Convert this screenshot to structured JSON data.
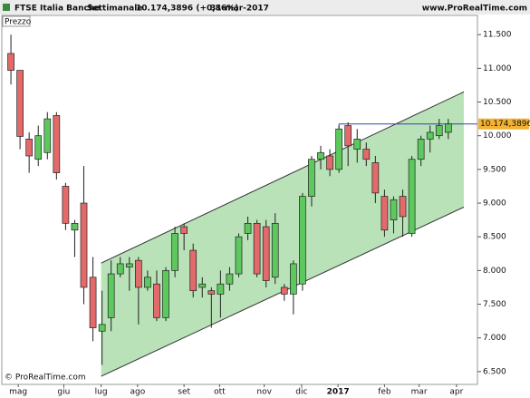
{
  "header": {
    "title": "FTSE Italia Banche",
    "period": "Settimanale",
    "quote": "10.174,3896 (+0,86%)",
    "date": "31-mar-2017",
    "site": "www.ProRealTime.com"
  },
  "footer": "© ProRealTime.com",
  "chart_data": {
    "type": "candlestick",
    "panel_label": "Prezzo",
    "up_color": "#5dc85d",
    "down_color": "#e26a6a",
    "open": [
      11220,
      10970,
      9950,
      9650,
      9750,
      10300,
      9250,
      8600,
      9000,
      7900,
      7100,
      7300,
      7950,
      8050,
      8150,
      7750,
      7800,
      7300,
      8000,
      8650,
      8300,
      7750,
      7700,
      7650,
      7800,
      7950,
      8550,
      8700,
      8650,
      7900,
      7750,
      7650,
      7800,
      9100,
      9650,
      9700,
      9500,
      10150,
      9800,
      9800,
      9600,
      9100,
      8750,
      9100,
      8550,
      9650,
      9950,
      10000,
      10050
    ],
    "high": [
      11500,
      10970,
      10050,
      10150,
      10350,
      10350,
      9300,
      8750,
      9550,
      8200,
      7700,
      8150,
      8200,
      8200,
      8200,
      8000,
      8000,
      8050,
      8650,
      8700,
      8400,
      7900,
      7750,
      8000,
      8050,
      8550,
      8800,
      8750,
      8750,
      8850,
      7800,
      8150,
      9150,
      9700,
      9850,
      9800,
      10150,
      10200,
      10100,
      9900,
      9700,
      9200,
      9100,
      9200,
      9700,
      10000,
      10150,
      10250,
      10250
    ],
    "low": [
      10760,
      9800,
      9450,
      9550,
      9650,
      9350,
      8600,
      8200,
      7500,
      6950,
      6600,
      7100,
      7900,
      7700,
      7200,
      7700,
      7250,
      7250,
      7900,
      8300,
      7600,
      7600,
      7150,
      7300,
      7700,
      7900,
      8450,
      7900,
      7750,
      7800,
      7550,
      7350,
      7700,
      8950,
      9500,
      9400,
      9450,
      9550,
      9600,
      9550,
      9000,
      8500,
      8550,
      8500,
      8500,
      9550,
      9750,
      9950,
      9950
    ],
    "close": [
      10970,
      9990,
      9700,
      10000,
      10250,
      9450,
      8700,
      8700,
      7750,
      7150,
      7200,
      7950,
      8100,
      8100,
      7750,
      7900,
      7300,
      8000,
      8550,
      8550,
      7700,
      7800,
      7650,
      7800,
      7950,
      8500,
      8700,
      7950,
      7850,
      8700,
      7650,
      8100,
      9100,
      9650,
      9750,
      9500,
      10100,
      9850,
      9950,
      9650,
      9150,
      8600,
      9050,
      8800,
      9650,
      9950,
      10050,
      10150,
      10174.3896
    ],
    "channel": {
      "x": [
        9.9,
        49.7
      ],
      "upper": [
        8110,
        10650
      ],
      "lower": [
        6430,
        8940
      ],
      "color": "#b9e2b9"
    },
    "last_price": {
      "value": 10174.3896,
      "label": "10.174,3896",
      "start": 36,
      "color": "#3344aa"
    },
    "xlim": [
      -1,
      51.2
    ],
    "xticks": [
      {
        "value": 0.8,
        "label": "mag"
      },
      {
        "value": 5.8,
        "label": "giu"
      },
      {
        "value": 9.9,
        "label": "lug"
      },
      {
        "value": 13.9,
        "label": "ago"
      },
      {
        "value": 19,
        "label": "set"
      },
      {
        "value": 22.9,
        "label": "ott"
      },
      {
        "value": 27.8,
        "label": "nov"
      },
      {
        "value": 31.9,
        "label": "dic"
      },
      {
        "value": 35.9,
        "label": "2017"
      },
      {
        "value": 41,
        "label": "feb"
      },
      {
        "value": 44.8,
        "label": "mar"
      },
      {
        "value": 48.9,
        "label": "apr"
      }
    ],
    "ylim": [
      6310,
      11785
    ],
    "yticks": [
      {
        "value": 6500,
        "label": "6.500"
      },
      {
        "value": 7000,
        "label": "7.000"
      },
      {
        "value": 7500,
        "label": "7.500"
      },
      {
        "value": 8000,
        "label": "8.000"
      },
      {
        "value": 8500,
        "label": "8.500"
      },
      {
        "value": 9000,
        "label": "9.000"
      },
      {
        "value": 9500,
        "label": "9.500"
      },
      {
        "value": 10000,
        "label": "10.000"
      },
      {
        "value": 10500,
        "label": "10.500"
      },
      {
        "value": 11000,
        "label": "11.000"
      },
      {
        "value": 11500,
        "label": "11.500"
      }
    ]
  }
}
